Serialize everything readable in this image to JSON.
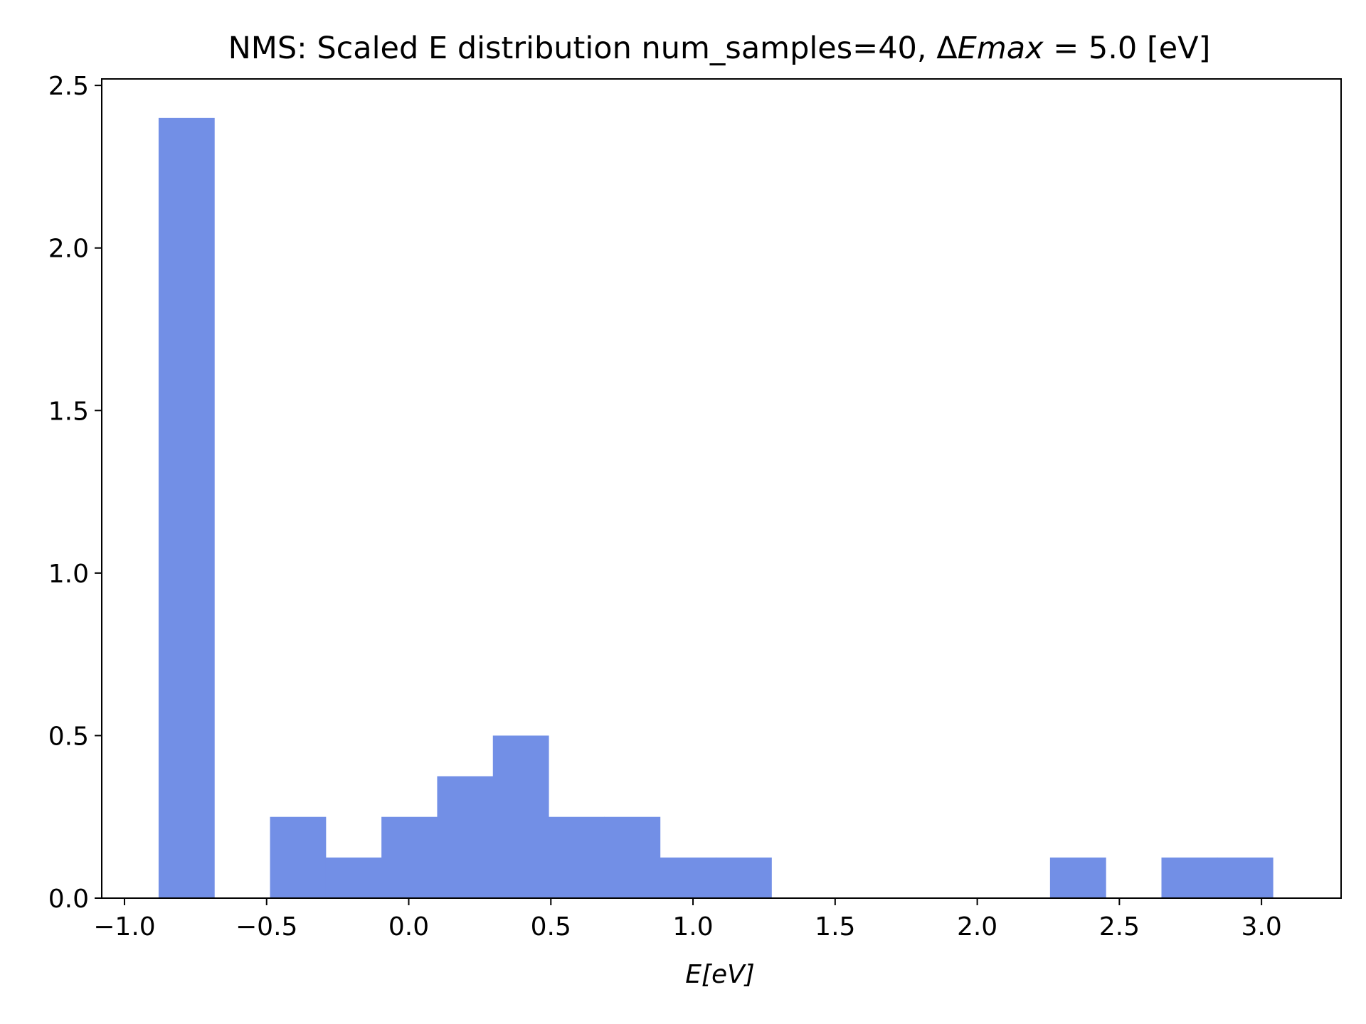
{
  "chart_data": {
    "type": "bar",
    "subtype": "histogram",
    "title": {
      "prefix": "NMS: Scaled E distribution num_samples=40, ",
      "delta": "Δ",
      "italic": "Emax",
      "suffix": " = 5.0 [eV]"
    },
    "xlabel": "E[eV]",
    "ylabel": "",
    "xlim": [
      -1.08,
      3.28
    ],
    "ylim": [
      0.0,
      2.52
    ],
    "xticks": [
      -1.0,
      -0.5,
      0.0,
      0.5,
      1.0,
      1.5,
      2.0,
      2.5,
      3.0
    ],
    "xtick_labels": [
      "−1.0",
      "−0.5",
      "0.0",
      "0.5",
      "1.0",
      "1.5",
      "2.0",
      "2.5",
      "3.0"
    ],
    "yticks": [
      0.0,
      0.5,
      1.0,
      1.5,
      2.0,
      2.5
    ],
    "ytick_labels": [
      "0.0",
      "0.5",
      "1.0",
      "1.5",
      "2.0",
      "2.5"
    ],
    "bins": [
      {
        "x0": -0.88,
        "x1": -0.684,
        "value": 2.4
      },
      {
        "x0": -0.684,
        "x1": -0.488,
        "value": 0.0
      },
      {
        "x0": -0.488,
        "x1": -0.292,
        "value": 0.25
      },
      {
        "x0": -0.292,
        "x1": -0.096,
        "value": 0.125
      },
      {
        "x0": -0.096,
        "x1": 0.1,
        "value": 0.25
      },
      {
        "x0": 0.1,
        "x1": 0.296,
        "value": 0.375
      },
      {
        "x0": 0.296,
        "x1": 0.492,
        "value": 0.5
      },
      {
        "x0": 0.492,
        "x1": 0.688,
        "value": 0.25
      },
      {
        "x0": 0.688,
        "x1": 0.884,
        "value": 0.25
      },
      {
        "x0": 0.884,
        "x1": 1.08,
        "value": 0.125
      },
      {
        "x0": 1.08,
        "x1": 1.276,
        "value": 0.125
      },
      {
        "x0": 1.276,
        "x1": 1.472,
        "value": 0.0
      },
      {
        "x0": 1.472,
        "x1": 1.668,
        "value": 0.0
      },
      {
        "x0": 1.668,
        "x1": 1.864,
        "value": 0.0
      },
      {
        "x0": 1.864,
        "x1": 2.06,
        "value": 0.0
      },
      {
        "x0": 2.06,
        "x1": 2.256,
        "value": 0.0
      },
      {
        "x0": 2.256,
        "x1": 2.452,
        "value": 0.125
      },
      {
        "x0": 2.452,
        "x1": 2.648,
        "value": 0.0
      },
      {
        "x0": 2.648,
        "x1": 2.844,
        "value": 0.125
      },
      {
        "x0": 2.844,
        "x1": 3.04,
        "value": 0.125
      }
    ],
    "bar_color": "#728fe6",
    "grid": false,
    "legend": "none"
  }
}
